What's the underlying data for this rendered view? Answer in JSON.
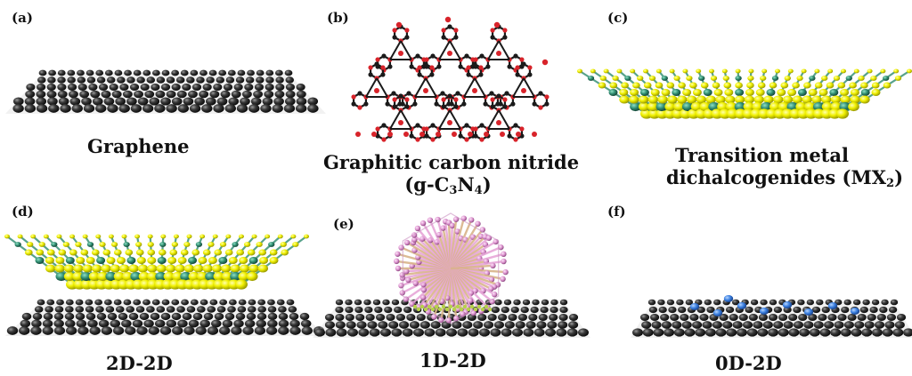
{
  "panels": {
    "a": {
      "letter": "(a)",
      "caption": "Graphene"
    },
    "b": {
      "letter": "(b)",
      "caption_line1": "Graphitic carbon nitride",
      "caption_line2_pre": "(g-C",
      "sub1": "3",
      "mid": "N",
      "sub2": "4",
      "post": ")"
    },
    "c": {
      "letter": "(c)",
      "caption_line1": "Transition metal",
      "caption_line2_pre": "dichalcogenides (MX",
      "sub1": "2",
      "post": ")"
    },
    "d": {
      "letter": "(d)",
      "caption": "2D-2D"
    },
    "e": {
      "letter": "(e)",
      "caption": "1D-2D"
    },
    "f": {
      "letter": "(f)",
      "caption": "0D-2D"
    }
  },
  "colors": {
    "graphene_atom": "#2b2b2b",
    "carbon_nitride_c": "#1a1a1a",
    "carbon_nitride_n": "#d8232a",
    "tmd_chalcogen": "#f2f200",
    "tmd_metal": "#2e8b6f",
    "rod_pink": "#e7a6d8",
    "rod_tan": "#d9b48a",
    "quantum_dot": "#3a7fe0"
  }
}
